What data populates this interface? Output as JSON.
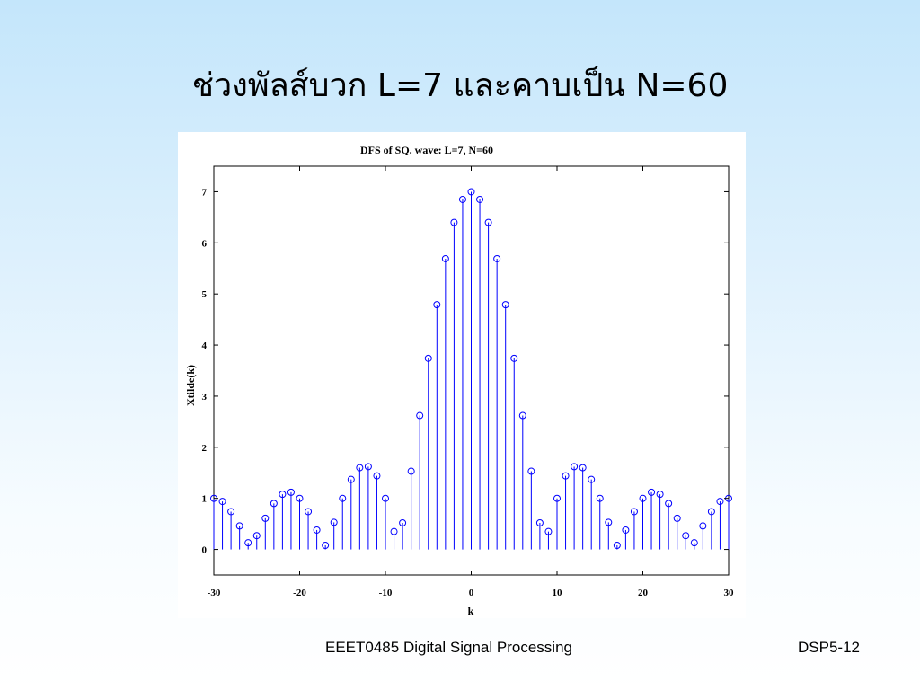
{
  "slide": {
    "title": "ช่วงพัลส์บวก L=7 และคาบเป็น N=60",
    "footer_course": "EEET0485 Digital Signal Processing",
    "footer_slide": "DSP5-12"
  },
  "chart_data": {
    "type": "stem",
    "title": "DFS of SQ. wave: L=7, N=60",
    "xlabel": "k",
    "ylabel": "Xtilde(k)",
    "xlim": [
      -30,
      30
    ],
    "ylim": [
      -0.5,
      7.5
    ],
    "xticks": [
      "-30",
      "-20",
      "-10",
      "0",
      "10",
      "20",
      "30"
    ],
    "yticks": [
      "0",
      "1",
      "2",
      "3",
      "4",
      "5",
      "6",
      "7"
    ],
    "stem_color": "#0000ff",
    "grid": false,
    "x": [
      -30,
      -29,
      -28,
      -27,
      -26,
      -25,
      -24,
      -23,
      -22,
      -21,
      -20,
      -19,
      -18,
      -17,
      -16,
      -15,
      -14,
      -13,
      -12,
      -11,
      -10,
      -9,
      -8,
      -7,
      -6,
      -5,
      -4,
      -3,
      -2,
      -1,
      0,
      1,
      2,
      3,
      4,
      5,
      6,
      7,
      8,
      9,
      10,
      11,
      12,
      13,
      14,
      15,
      16,
      17,
      18,
      19,
      20,
      21,
      22,
      23,
      24,
      25,
      26,
      27,
      28,
      29,
      30
    ],
    "values": [
      1.0,
      0.94,
      0.74,
      0.46,
      0.13,
      0.27,
      0.61,
      0.9,
      1.08,
      1.12,
      1.0,
      0.74,
      0.38,
      0.08,
      0.53,
      1.0,
      1.37,
      1.6,
      1.62,
      1.44,
      1.0,
      0.35,
      0.52,
      1.53,
      2.62,
      3.74,
      4.79,
      5.69,
      6.4,
      6.85,
      7.0,
      6.85,
      6.4,
      5.69,
      4.79,
      3.74,
      2.62,
      1.53,
      0.52,
      0.35,
      1.0,
      1.44,
      1.62,
      1.6,
      1.37,
      1.0,
      0.53,
      0.08,
      0.38,
      0.74,
      1.0,
      1.12,
      1.08,
      0.9,
      0.61,
      0.27,
      0.13,
      0.46,
      0.74,
      0.94,
      1.0
    ]
  }
}
